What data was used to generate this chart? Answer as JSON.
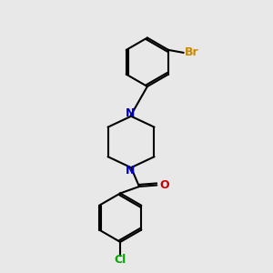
{
  "background_color": "#e8e8e8",
  "bond_color": "#000000",
  "bond_width": 1.5,
  "atom_colors": {
    "N": "#0000cc",
    "O": "#cc0000",
    "Br": "#cc8800",
    "Cl": "#00aa00",
    "C": "#000000"
  },
  "font_size_atoms": 9,
  "font_size_labels": 9
}
